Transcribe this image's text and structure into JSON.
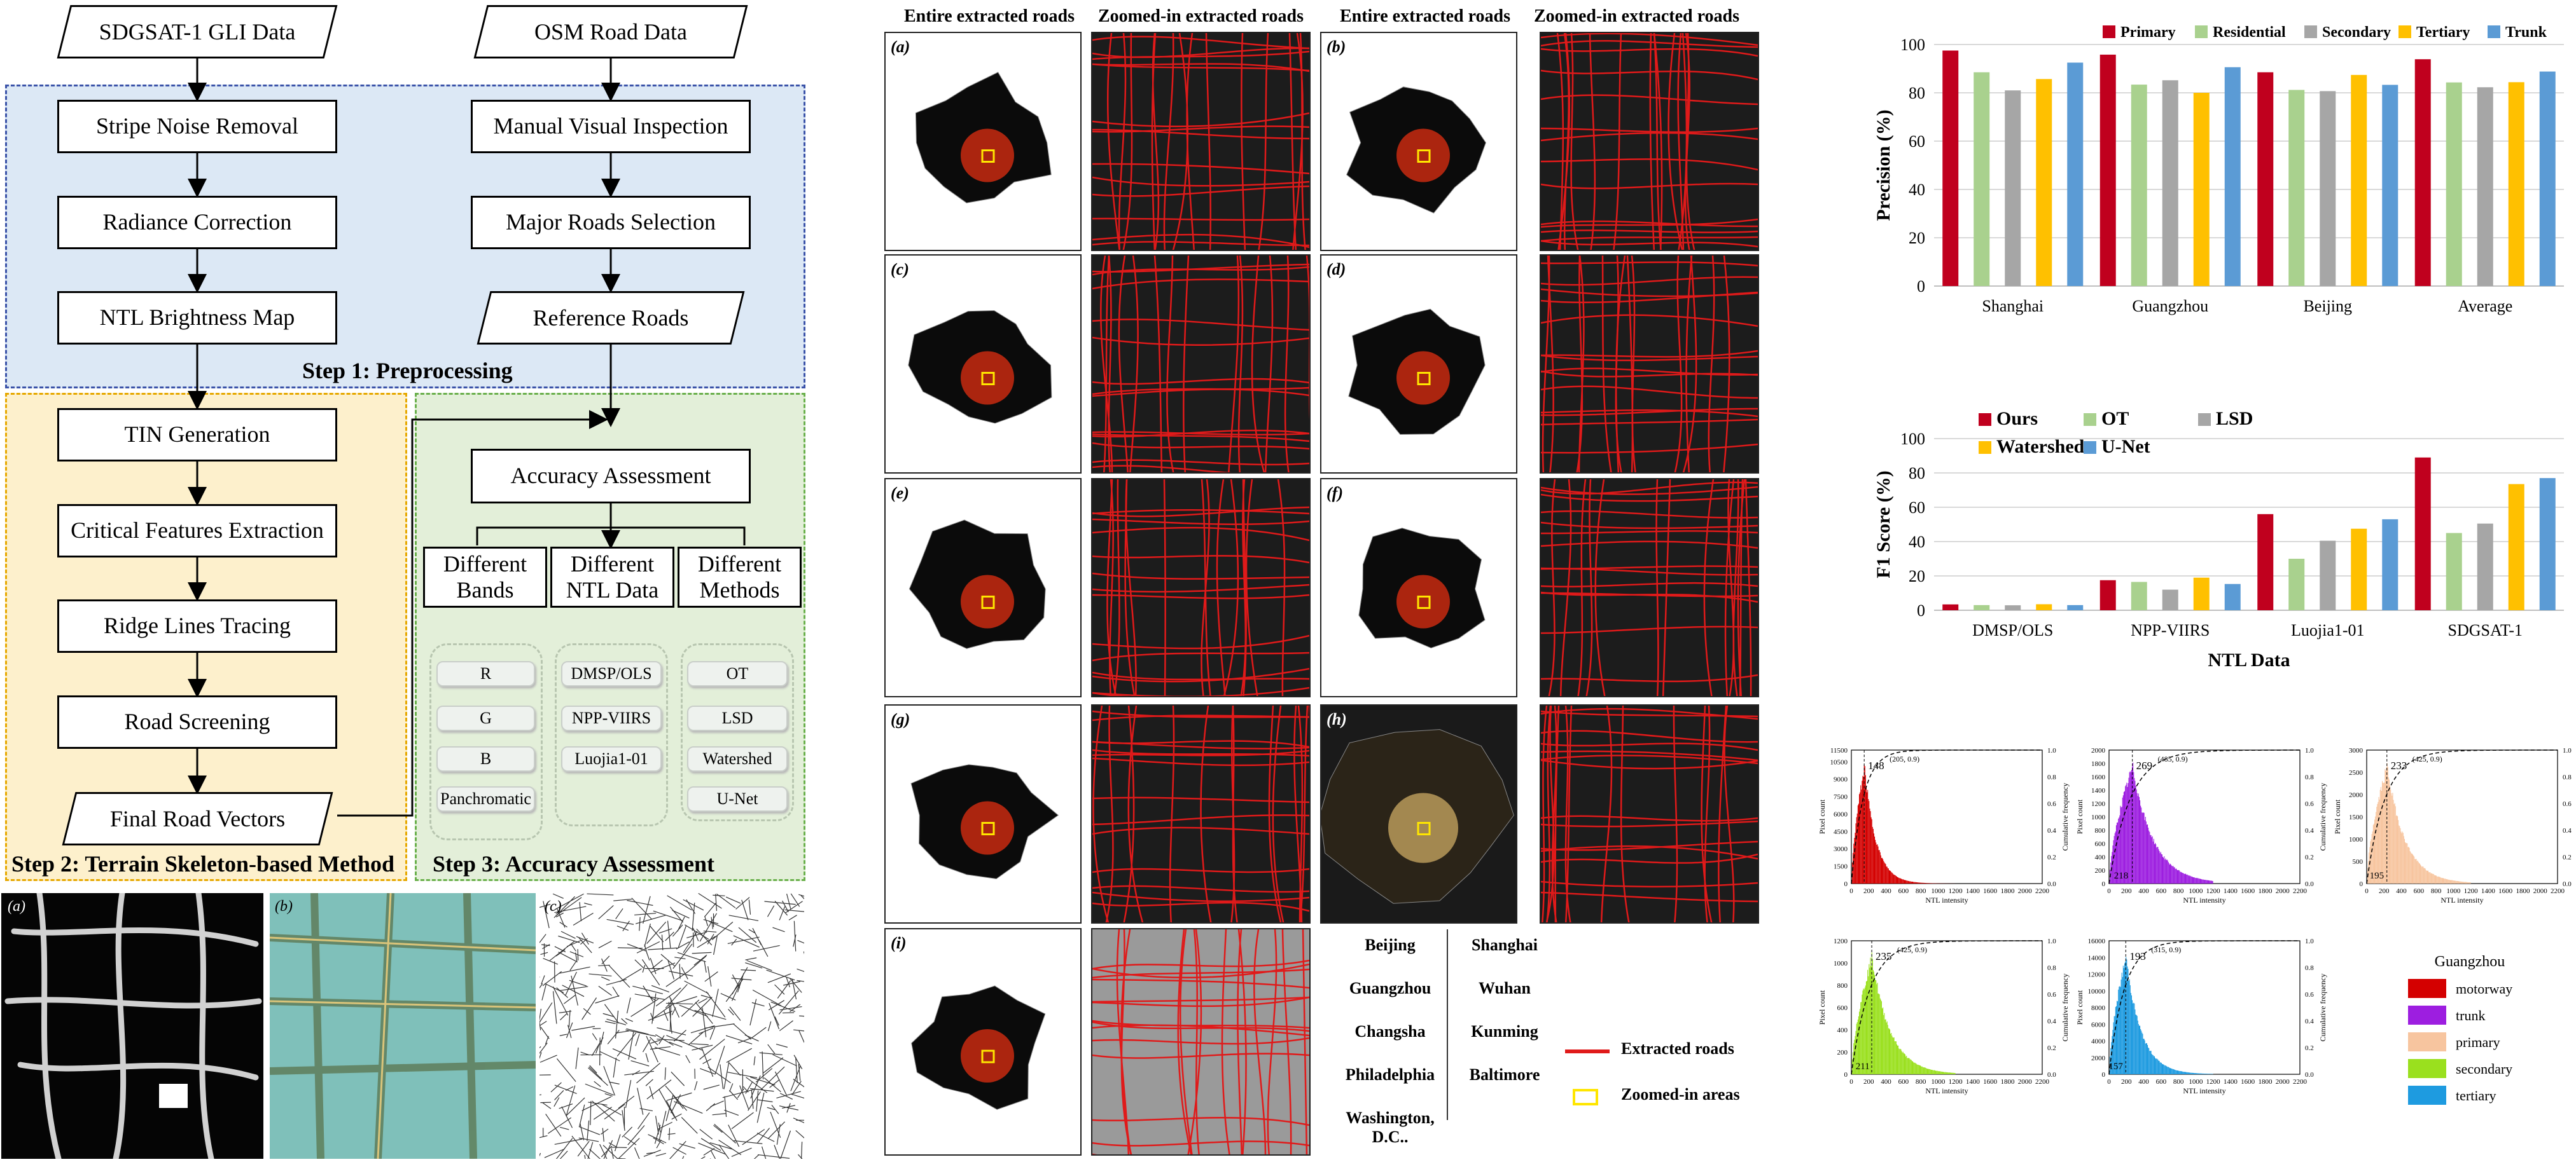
{
  "flowchart": {
    "inputs": {
      "gli": "SDGSAT-1 GLI Data",
      "osm": "OSM Road Data"
    },
    "left_steps": [
      "Stripe Noise Removal",
      "Radiance Correction",
      "NTL Brightness Map"
    ],
    "right_steps": [
      "Manual Visual Inspection",
      "Major Roads Selection",
      "Reference Roads"
    ],
    "step1_label": "Step 1: Preprocessing",
    "terrain_steps": [
      "TIN Generation",
      "Critical Features Extraction",
      "Ridge Lines Tracing",
      "Road Screening",
      "Final Road Vectors"
    ],
    "step2_label": "Step 2: Terrain Skeleton-based Method",
    "accuracy": "Accuracy Assessment",
    "groups": [
      {
        "title": "Different Bands",
        "items": [
          "R",
          "G",
          "B",
          "Panchromatic"
        ]
      },
      {
        "title": "Different NTL Data",
        "items": [
          "DMSP/OLS",
          "NPP-VIIRS",
          "Luojia1-01"
        ]
      },
      {
        "title": "Different Methods",
        "items": [
          "OT",
          "LSD",
          "Watershed",
          "U-Net"
        ]
      }
    ],
    "step3_label": "Step 3: Accuracy Assessment",
    "bottom_panels": [
      "(a)",
      "(b)",
      "(c)"
    ]
  },
  "maps": {
    "headers": [
      "Entire extracted roads",
      "Zoomed-in extracted roads",
      "Entire extracted roads",
      "Zoomed-in extracted roads"
    ],
    "panels": [
      "(a)",
      "(b)",
      "(c)",
      "(d)",
      "(e)",
      "(f)",
      "(g)",
      "(h)",
      "(i)"
    ],
    "cities": [
      [
        "Beijing",
        "Shanghai"
      ],
      [
        "Guangzhou",
        "Wuhan"
      ],
      [
        "Changsha",
        "Kunming"
      ],
      [
        "Philadelphia",
        "Baltimore"
      ],
      [
        "Washington, D.C..",
        ""
      ]
    ],
    "legend": {
      "roads": "Extracted roads",
      "zoom": "Zoomed-in areas"
    }
  },
  "colors": {
    "primary": "#c0001e",
    "residential": "#a9d18e",
    "secondary": "#a6a6a6",
    "tertiary": "#ffc000",
    "trunk": "#5b9bd5",
    "road_red": "#e01a1a",
    "zoom_yellow": "#ffe600",
    "step1_bg": "#dce8f5",
    "step2_bg": "#fdf0cc",
    "step3_bg": "#e3efd9",
    "hist_motorway": "#d40000",
    "hist_trunk": "#9d1ee0",
    "hist_primary": "#f7c59f",
    "hist_secondary": "#9ae01e",
    "hist_tertiary": "#1e9be0"
  },
  "chart_data": [
    {
      "type": "bar",
      "ylabel": "Precision (%)",
      "xlabel": "",
      "ylim": [
        0,
        100
      ],
      "yticks": [
        "0",
        "20",
        "40",
        "60",
        "80",
        "100"
      ],
      "categories": [
        "Shanghai",
        "Guangzhou",
        "Beijing",
        "Average"
      ],
      "series": [
        {
          "name": "Primary",
          "values": [
            97.5,
            95.8,
            88.5,
            93.9
          ]
        },
        {
          "name": "Residential",
          "values": [
            88.5,
            83.4,
            81.2,
            84.3
          ]
        },
        {
          "name": "Secondary",
          "values": [
            81.0,
            85.2,
            80.7,
            82.3
          ]
        },
        {
          "name": "Tertiary",
          "values": [
            85.7,
            80.0,
            87.4,
            84.4
          ]
        },
        {
          "name": "Trunk",
          "values": [
            92.5,
            90.6,
            83.3,
            88.8
          ]
        }
      ],
      "legend": "top"
    },
    {
      "type": "bar",
      "ylabel": "F1 Score (%)",
      "xlabel": "NTL Data",
      "ylim": [
        0,
        100
      ],
      "yticks": [
        "0",
        "20",
        "40",
        "60",
        "80",
        "100"
      ],
      "categories": [
        "DMSP/OLS",
        "NPP-VIIRS",
        "Luojia1-01",
        "SDGSAT-1"
      ],
      "series": [
        {
          "name": "Ours",
          "values": [
            3.4,
            17.5,
            56.0,
            89.0
          ]
        },
        {
          "name": "OT",
          "values": [
            3.0,
            16.5,
            30.0,
            45.0
          ]
        },
        {
          "name": "LSD",
          "values": [
            2.9,
            12.0,
            40.5,
            50.5
          ]
        },
        {
          "name": "Watershed",
          "values": [
            3.5,
            19.0,
            47.5,
            73.5
          ]
        },
        {
          "name": "U-Net",
          "values": [
            3.0,
            15.3,
            53.0,
            77.0
          ]
        }
      ],
      "legend": "top-left"
    },
    {
      "type": "histogram",
      "title": "Guangzhou",
      "xlabel": "NTL intensity",
      "ylabel": "Pixel count",
      "ylabel2": "Cumulative frequency",
      "xticks": [
        "0",
        "200",
        "400",
        "600",
        "800",
        "1000",
        "1200",
        "1400",
        "1600",
        "1800",
        "2000",
        "2200"
      ],
      "y2ticks": [
        "0.0",
        "0.2",
        "0.4",
        "0.6",
        "0.8",
        "1.0"
      ],
      "classes": [
        {
          "name": "motorway",
          "yticks": [
            "0",
            "1500",
            "3000",
            "4500",
            "6000",
            "7500",
            "9000",
            "10500",
            "11500"
          ],
          "peak": 148,
          "point": "(205, 0.9)",
          "ymax": 11500
        },
        {
          "name": "trunk",
          "yticks": [
            "0",
            "200",
            "400",
            "600",
            "800",
            "1000",
            "1200",
            "1400",
            "1600",
            "1800",
            "2000"
          ],
          "peak": 269,
          "low": 218,
          "point": "(485, 0.9)",
          "ymax": 2000
        },
        {
          "name": "primary",
          "yticks": [
            "0",
            "500",
            "1000",
            "1500",
            "2000",
            "2500",
            "3000"
          ],
          "peak": 233,
          "low": 195,
          "point": "(425, 0.9)",
          "ymax": 3000
        },
        {
          "name": "secondary",
          "yticks": [
            "0",
            "200",
            "400",
            "600",
            "800",
            "1000",
            "1200"
          ],
          "peak": 235,
          "low": 211,
          "point": "(425, 0.9)",
          "ymax": 1200
        },
        {
          "name": "tertiary",
          "yticks": [
            "0",
            "2000",
            "4000",
            "6000",
            "8000",
            "10000",
            "12000",
            "14000",
            "16000"
          ],
          "peak": 193,
          "low": 157,
          "point": "(315, 0.9)",
          "ymax": 16000
        }
      ]
    }
  ]
}
